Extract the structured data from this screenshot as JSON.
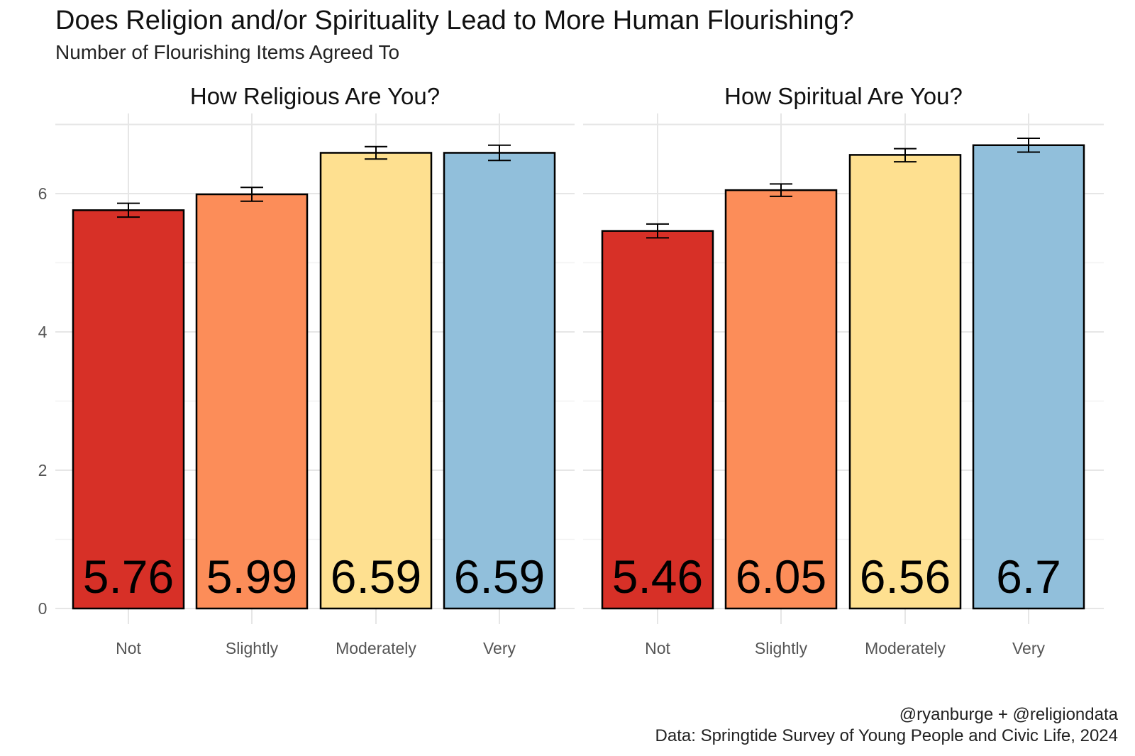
{
  "title": "Does Religion and/or Spirituality Lead to More Human Flourishing?",
  "subtitle": "Number of Flourishing Items Agreed To",
  "caption": {
    "line1": "@ryanburge + @religiondata",
    "line2": "Data: Springtide Survey of Young People and Civic Life, 2024"
  },
  "colors": {
    "Not": "#d73027",
    "Slightly": "#fc8d59",
    "Moderately": "#fee090",
    "Very": "#91bfdb"
  },
  "chart_data": {
    "type": "bar",
    "ylim": [
      0,
      7
    ],
    "yticks": [
      0,
      2,
      4,
      6
    ],
    "grid": true,
    "categories": [
      "Not",
      "Slightly",
      "Moderately",
      "Very"
    ],
    "panels": [
      {
        "title": "How Religious Are You?",
        "values": [
          5.76,
          5.99,
          6.59,
          6.59
        ],
        "labels": [
          "5.76",
          "5.99",
          "6.59",
          "6.59"
        ],
        "error_low": [
          5.66,
          5.89,
          6.5,
          6.48
        ],
        "error_high": [
          5.86,
          6.09,
          6.68,
          6.7
        ]
      },
      {
        "title": "How Spiritual Are You?",
        "values": [
          5.46,
          6.05,
          6.56,
          6.7
        ],
        "labels": [
          "5.46",
          "6.05",
          "6.56",
          "6.7"
        ],
        "error_low": [
          5.36,
          5.96,
          6.46,
          6.6
        ],
        "error_high": [
          5.56,
          6.14,
          6.65,
          6.8
        ]
      }
    ]
  }
}
